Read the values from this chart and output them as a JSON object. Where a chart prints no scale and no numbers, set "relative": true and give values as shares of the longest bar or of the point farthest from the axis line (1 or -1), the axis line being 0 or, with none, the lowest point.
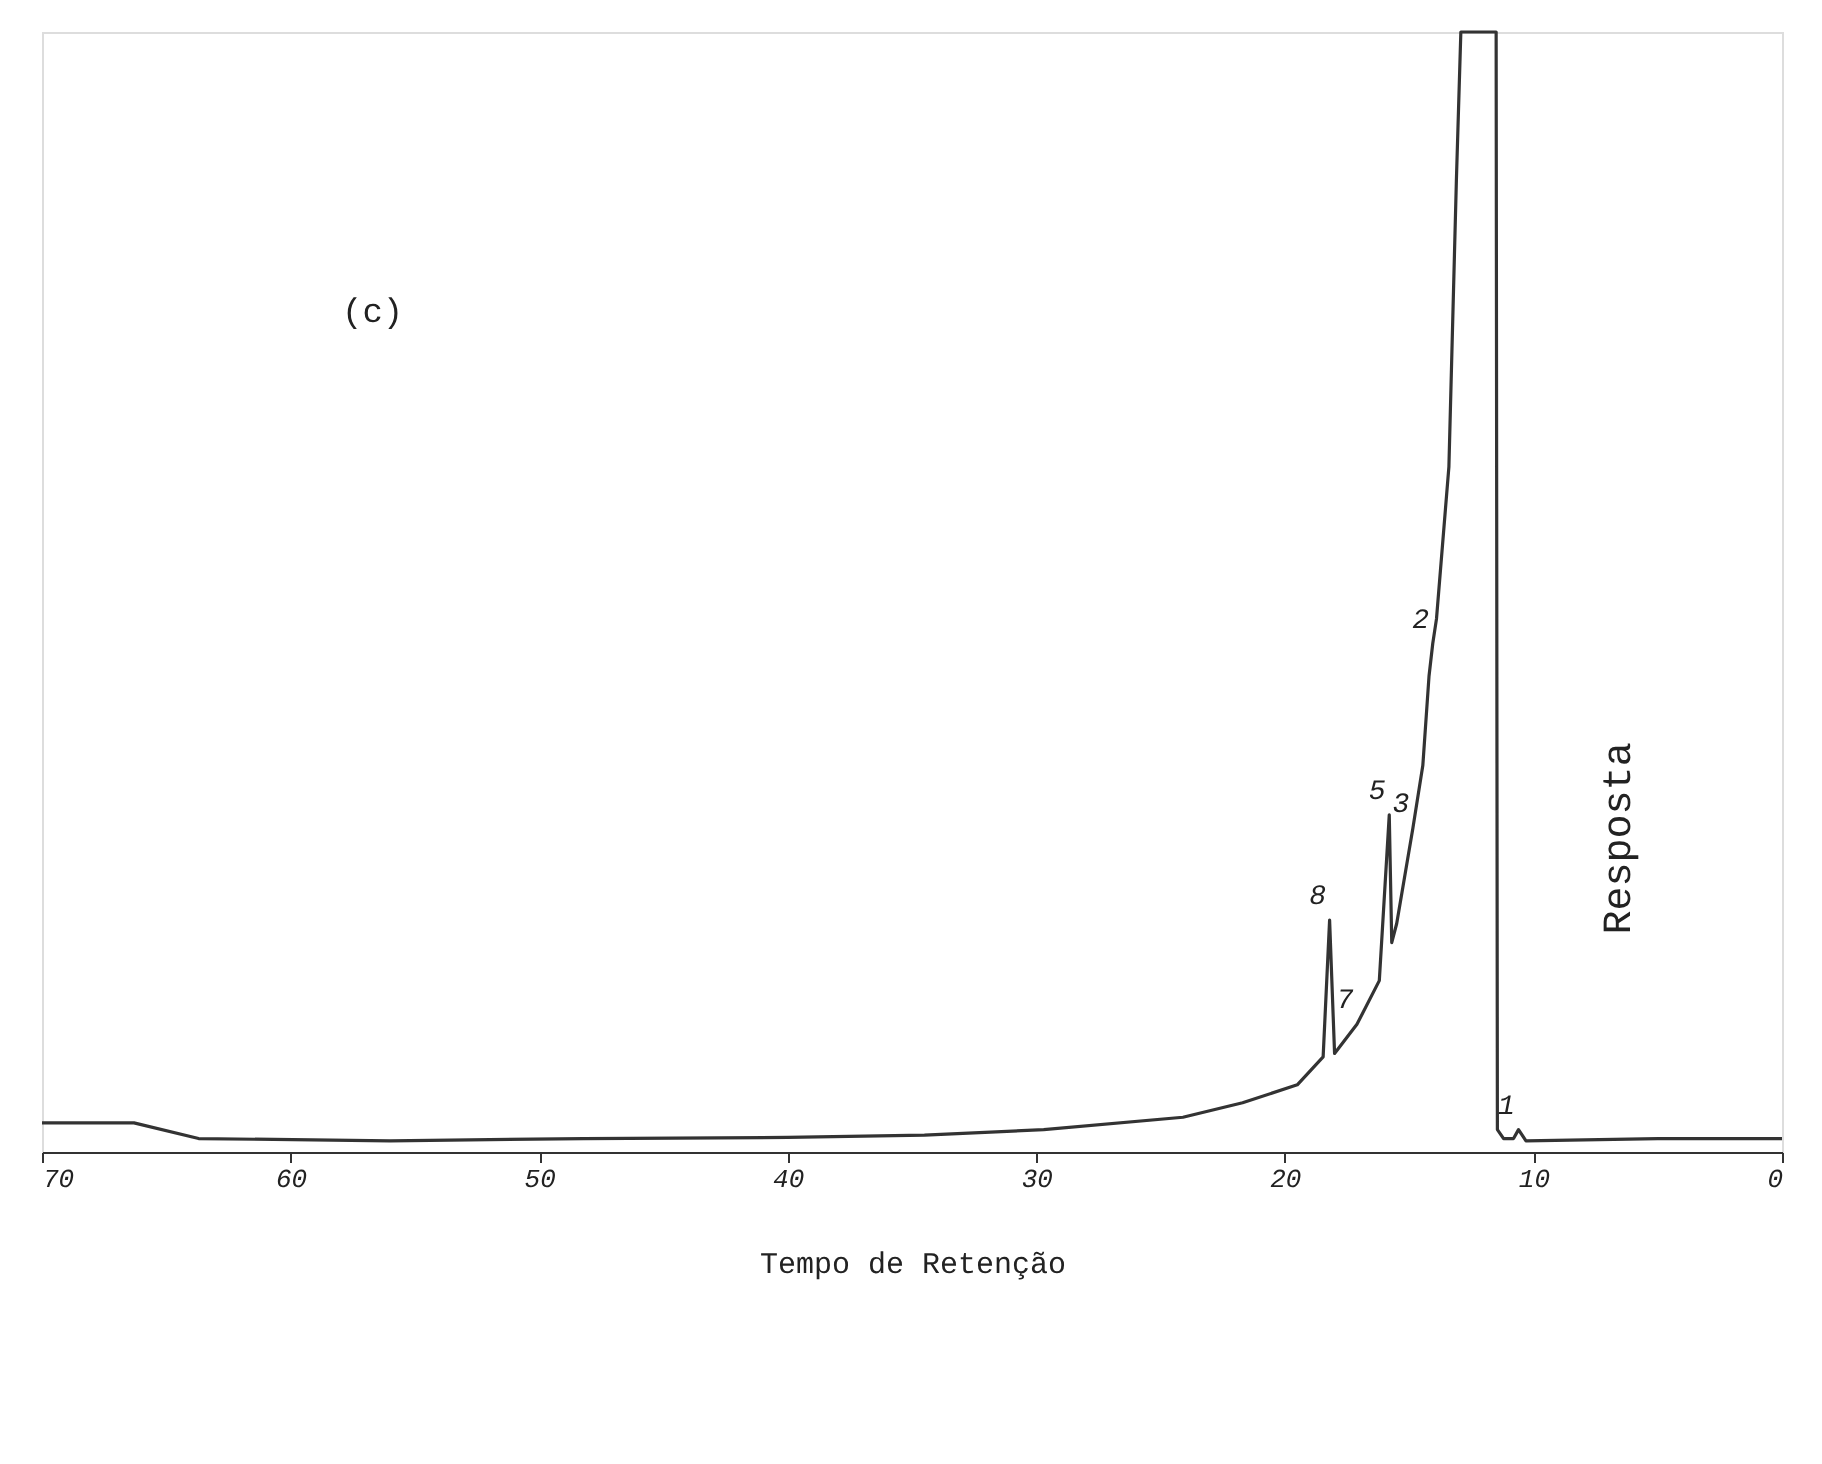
{
  "chart_data": {
    "type": "line",
    "relative": true,
    "xlabel": "Tempo de Retenção",
    "ylabel": "Resposta",
    "xlim": [
      70,
      0
    ],
    "xticks": [
      70,
      60,
      50,
      40,
      30,
      20,
      10,
      0
    ],
    "grid": false,
    "marker": "none",
    "line_style": "solid",
    "x": [
      70,
      66.3,
      63.7,
      56,
      48.2,
      40,
      34.5,
      29.7,
      24.1,
      21.7,
      19.5,
      18.46,
      18.2,
      18.0,
      17.1,
      16.2,
      15.8,
      15.7,
      15.5,
      14.85,
      14.45,
      14.2,
      14.05,
      13.9,
      13.4,
      13.1,
      12.92,
      11.5,
      11.45,
      11.2,
      10.8,
      10.6,
      10.3,
      5,
      0
    ],
    "series": [
      {
        "color": "#333333",
        "values": [
          0.026,
          0.026,
          0.012,
          0.01,
          0.012,
          0.013,
          0.015,
          0.02,
          0.031,
          0.044,
          0.06,
          0.085,
          0.207,
          0.088,
          0.114,
          0.153,
          0.301,
          0.187,
          0.204,
          0.289,
          0.345,
          0.425,
          0.454,
          0.476,
          0.612,
          0.867,
          1,
          1,
          0.02,
          0.012,
          0.012,
          0.02,
          0.01,
          0.012,
          0.012
        ]
      }
    ],
    "annotations": [
      "(c)",
      {
        "text": "1",
        "x": 10.6,
        "y": 0.02
      },
      {
        "text": "2",
        "x": 14.05,
        "y": 0.454
      },
      {
        "text": "3",
        "x": 14.85,
        "y": 0.289
      },
      {
        "text": "5",
        "x": 15.8,
        "y": 0.301
      },
      {
        "text": "7",
        "x": 17.1,
        "y": 0.114
      },
      {
        "text": "8",
        "x": 18.2,
        "y": 0.207
      }
    ]
  }
}
